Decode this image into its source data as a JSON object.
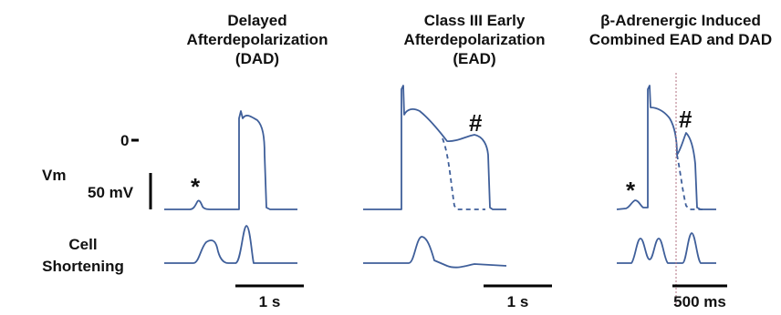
{
  "panels": [
    {
      "title_lines": [
        "Delayed",
        "Afterdepolarization",
        "(DAD)"
      ],
      "scale_bar_label": "1 s",
      "marker": "*"
    },
    {
      "title_lines": [
        "Class III Early",
        "Afterdepolarization",
        "(EAD)"
      ],
      "scale_bar_label": "1 s",
      "marker": "#"
    },
    {
      "title_lines": [
        "β-Adrenergic Induced",
        "Combined EAD and DAD"
      ],
      "scale_bar_label": "500 ms",
      "markers": [
        "*",
        "#"
      ]
    }
  ],
  "axis_labels": {
    "zero": "0",
    "vm": "Vm",
    "voltage_scale": "50 mV",
    "cell_shortening_line1": "Cell",
    "cell_shortening_line2": "Shortening"
  },
  "colors": {
    "trace": "#3f5f9a",
    "scale_bar": "#000000",
    "marker_line": "#b07080"
  }
}
